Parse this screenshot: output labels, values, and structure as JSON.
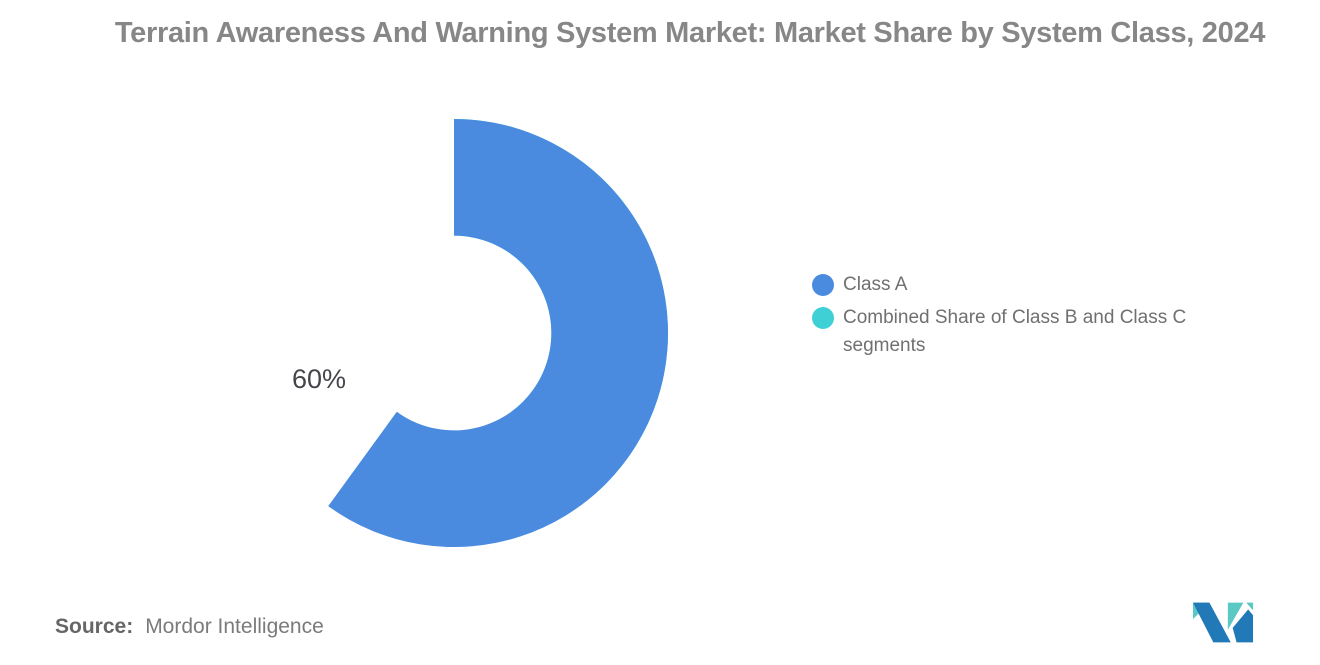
{
  "title": "Terrain Awareness And Warning System Market: Market Share by System Class, 2024",
  "chart_data": {
    "type": "pie",
    "subtype": "donut",
    "title": "Terrain Awareness And Warning System Market: Market Share by System Class, 2024",
    "segments": [
      {
        "label": "Class A",
        "value": 60,
        "color": "#4a8be0",
        "data_label": "60%"
      },
      {
        "label": "Combined Share of Class B and Class C segments",
        "value": 40,
        "color": "#3fd0d6",
        "data_label": ""
      }
    ],
    "start_angle_deg": 0,
    "direction": "clockwise from 12 o'clock, segments drawn in reverse order",
    "inner_radius_ratio": 0.455,
    "legend_position": "right",
    "data_labels_shown": [
      "60%"
    ]
  },
  "legend": {
    "items": [
      {
        "label": "Class A",
        "color": "#4a8be0"
      },
      {
        "label": "Combined Share of Class B and Class C segments",
        "color": "#3fd0d6"
      }
    ]
  },
  "source": {
    "prefix": "Source:",
    "text": "Mordor Intelligence"
  },
  "colors": {
    "title_gray": "#878787",
    "legend_text": "#707070",
    "slice_label": "#45464b",
    "logo_blue": "#2279b8",
    "logo_teal": "#5cc8c4"
  },
  "logo": {
    "name": "mordor-intelligence-logo"
  }
}
